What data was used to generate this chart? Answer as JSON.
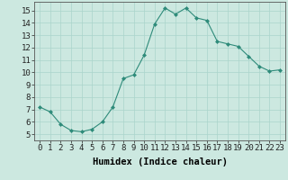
{
  "x": [
    0,
    1,
    2,
    3,
    4,
    5,
    6,
    7,
    8,
    9,
    10,
    11,
    12,
    13,
    14,
    15,
    16,
    17,
    18,
    19,
    20,
    21,
    22,
    23
  ],
  "y": [
    7.2,
    6.8,
    5.8,
    5.3,
    5.2,
    5.4,
    6.0,
    7.2,
    9.5,
    9.8,
    11.4,
    13.9,
    15.2,
    14.7,
    15.2,
    14.4,
    14.2,
    12.5,
    12.3,
    12.1,
    11.3,
    10.5,
    10.1,
    10.2
  ],
  "line_color": "#2e8b7a",
  "marker": "D",
  "marker_size": 2.0,
  "bg_color": "#cce8e0",
  "grid_color": "#aad4cb",
  "xlabel": "Humidex (Indice chaleur)",
  "xlim": [
    -0.5,
    23.5
  ],
  "ylim": [
    4.5,
    15.7
  ],
  "yticks": [
    5,
    6,
    7,
    8,
    9,
    10,
    11,
    12,
    13,
    14,
    15
  ],
  "xticks": [
    0,
    1,
    2,
    3,
    4,
    5,
    6,
    7,
    8,
    9,
    10,
    11,
    12,
    13,
    14,
    15,
    16,
    17,
    18,
    19,
    20,
    21,
    22,
    23
  ],
  "tick_font_size": 6.5,
  "label_font_size": 7.5
}
